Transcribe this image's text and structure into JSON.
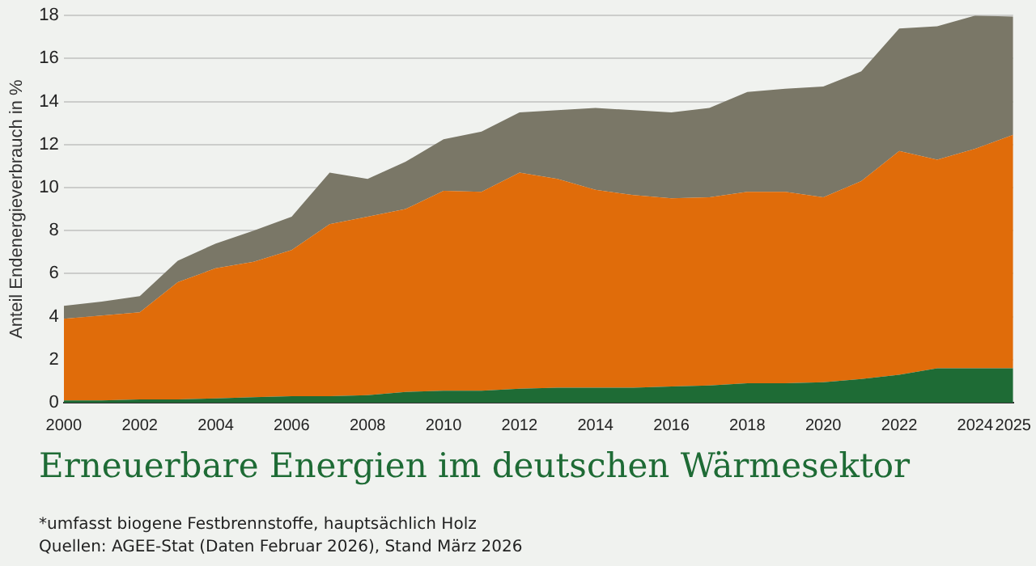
{
  "chart_data": {
    "type": "area",
    "title": "Erneuerbare Energien im deutschen Wärmesektor",
    "ylabel": "Anteil Endenergieverbrauch in %",
    "annotations": [
      "*umfasst biogene Festbrennstoffe, hauptsächlich Holz",
      "Quellen: AGEE-Stat (Daten Februar 2026), Stand März 2026"
    ],
    "x": [
      2000,
      2001,
      2002,
      2003,
      2004,
      2005,
      2006,
      2007,
      2008,
      2009,
      2010,
      2011,
      2012,
      2013,
      2014,
      2015,
      2016,
      2017,
      2018,
      2019,
      2020,
      2021,
      2022,
      2023,
      2024,
      2025
    ],
    "stacked": true,
    "marker": "none",
    "grid": "y",
    "xlim": [
      2000,
      2025
    ],
    "xticks": [
      2000,
      2002,
      2004,
      2006,
      2008,
      2010,
      2012,
      2014,
      2016,
      2018,
      2020,
      2022,
      2024,
      2025
    ],
    "ylim": [
      0,
      18
    ],
    "yticks": [
      0,
      2,
      4,
      6,
      8,
      10,
      12,
      14,
      16,
      18
    ],
    "series": [
      {
        "color": "#1e6b35",
        "values": [
          0.1,
          0.1,
          0.15,
          0.15,
          0.2,
          0.25,
          0.3,
          0.3,
          0.35,
          0.5,
          0.55,
          0.55,
          0.65,
          0.7,
          0.7,
          0.7,
          0.75,
          0.8,
          0.9,
          0.9,
          0.95,
          1.1,
          1.3,
          1.6,
          1.6,
          1.6
        ]
      },
      {
        "color": "#e06c0a",
        "values": [
          3.8,
          3.95,
          4.05,
          5.45,
          6.05,
          6.3,
          6.8,
          8.0,
          8.3,
          8.5,
          9.3,
          9.25,
          10.05,
          9.7,
          9.2,
          8.95,
          8.75,
          8.75,
          8.9,
          8.9,
          8.6,
          9.2,
          10.4,
          9.7,
          10.2,
          10.85
        ]
      },
      {
        "color": "#7a7767",
        "values": [
          0.6,
          0.65,
          0.75,
          1.0,
          1.15,
          1.45,
          1.55,
          2.4,
          1.75,
          2.2,
          2.4,
          2.8,
          2.8,
          3.2,
          3.8,
          3.95,
          4.0,
          4.15,
          4.65,
          4.8,
          5.15,
          5.1,
          5.7,
          6.2,
          6.2,
          5.5
        ]
      }
    ]
  }
}
